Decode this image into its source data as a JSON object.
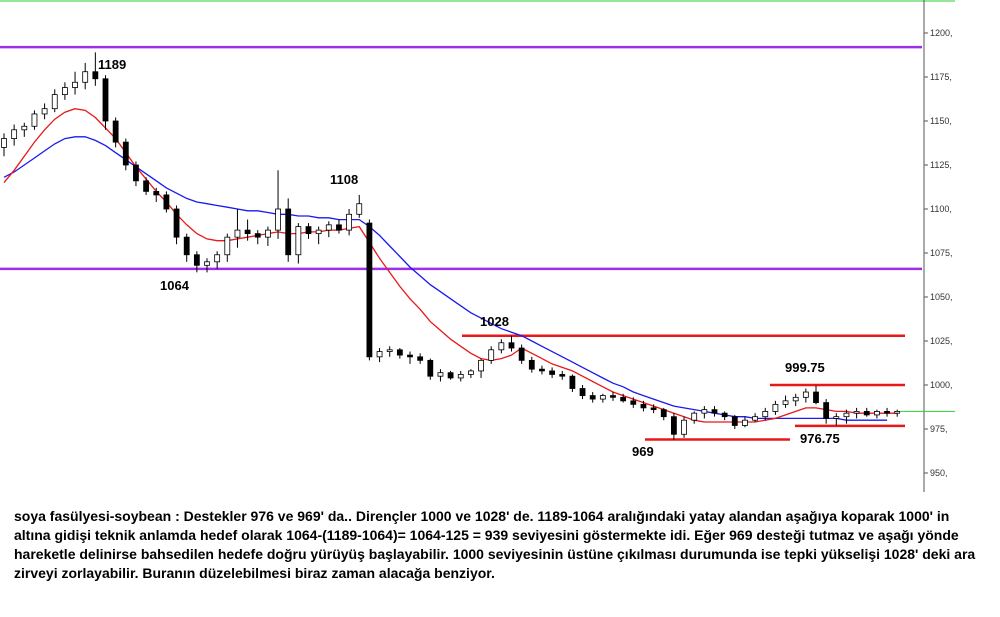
{
  "chart_data": {
    "type": "candlestick",
    "ylim": [
      950,
      1210
    ],
    "y_ticks": [
      950,
      975,
      1000,
      1025,
      1050,
      1075,
      1100,
      1125,
      1150,
      1175,
      1200
    ],
    "tick_suffix": ",",
    "grid": false,
    "candles": [
      {
        "o": 1135,
        "h": 1143,
        "l": 1130,
        "c": 1140
      },
      {
        "o": 1140,
        "h": 1148,
        "l": 1136,
        "c": 1145
      },
      {
        "o": 1145,
        "h": 1149,
        "l": 1141,
        "c": 1147
      },
      {
        "o": 1147,
        "h": 1156,
        "l": 1145,
        "c": 1154
      },
      {
        "o": 1154,
        "h": 1160,
        "l": 1151,
        "c": 1157
      },
      {
        "o": 1157,
        "h": 1168,
        "l": 1155,
        "c": 1165
      },
      {
        "o": 1165,
        "h": 1172,
        "l": 1162,
        "c": 1169
      },
      {
        "o": 1169,
        "h": 1178,
        "l": 1165,
        "c": 1172
      },
      {
        "o": 1172,
        "h": 1183,
        "l": 1168,
        "c": 1178
      },
      {
        "o": 1178,
        "h": 1189,
        "l": 1170,
        "c": 1174
      },
      {
        "o": 1174,
        "h": 1176,
        "l": 1145,
        "c": 1150
      },
      {
        "o": 1150,
        "h": 1152,
        "l": 1135,
        "c": 1138
      },
      {
        "o": 1138,
        "h": 1140,
        "l": 1122,
        "c": 1125
      },
      {
        "o": 1125,
        "h": 1127,
        "l": 1113,
        "c": 1116
      },
      {
        "o": 1116,
        "h": 1118,
        "l": 1108,
        "c": 1110
      },
      {
        "o": 1110,
        "h": 1112,
        "l": 1104,
        "c": 1108
      },
      {
        "o": 1108,
        "h": 1110,
        "l": 1098,
        "c": 1100
      },
      {
        "o": 1100,
        "h": 1102,
        "l": 1080,
        "c": 1084
      },
      {
        "o": 1084,
        "h": 1086,
        "l": 1070,
        "c": 1074
      },
      {
        "o": 1074,
        "h": 1076,
        "l": 1064,
        "c": 1068
      },
      {
        "o": 1068,
        "h": 1072,
        "l": 1064,
        "c": 1070
      },
      {
        "o": 1070,
        "h": 1076,
        "l": 1066,
        "c": 1074
      },
      {
        "o": 1074,
        "h": 1086,
        "l": 1070,
        "c": 1084
      },
      {
        "o": 1084,
        "h": 1100,
        "l": 1078,
        "c": 1088
      },
      {
        "o": 1088,
        "h": 1094,
        "l": 1082,
        "c": 1086
      },
      {
        "o": 1086,
        "h": 1088,
        "l": 1080,
        "c": 1084
      },
      {
        "o": 1084,
        "h": 1090,
        "l": 1079,
        "c": 1088
      },
      {
        "o": 1088,
        "h": 1122,
        "l": 1083,
        "c": 1100
      },
      {
        "o": 1100,
        "h": 1106,
        "l": 1070,
        "c": 1074
      },
      {
        "o": 1074,
        "h": 1092,
        "l": 1069,
        "c": 1090
      },
      {
        "o": 1090,
        "h": 1092,
        "l": 1083,
        "c": 1086
      },
      {
        "o": 1086,
        "h": 1090,
        "l": 1080,
        "c": 1088
      },
      {
        "o": 1088,
        "h": 1093,
        "l": 1084,
        "c": 1091
      },
      {
        "o": 1091,
        "h": 1094,
        "l": 1086,
        "c": 1088
      },
      {
        "o": 1088,
        "h": 1100,
        "l": 1085,
        "c": 1097
      },
      {
        "o": 1097,
        "h": 1108,
        "l": 1095,
        "c": 1103
      },
      {
        "o": 1092,
        "h": 1094,
        "l": 1014,
        "c": 1016
      },
      {
        "o": 1016,
        "h": 1021,
        "l": 1013,
        "c": 1019
      },
      {
        "o": 1019,
        "h": 1022,
        "l": 1016,
        "c": 1020
      },
      {
        "o": 1020,
        "h": 1021,
        "l": 1015,
        "c": 1017
      },
      {
        "o": 1017,
        "h": 1019,
        "l": 1012,
        "c": 1016
      },
      {
        "o": 1016,
        "h": 1018,
        "l": 1012,
        "c": 1014
      },
      {
        "o": 1014,
        "h": 1015,
        "l": 1003,
        "c": 1005
      },
      {
        "o": 1005,
        "h": 1009,
        "l": 1002,
        "c": 1007
      },
      {
        "o": 1007,
        "h": 1008,
        "l": 1003,
        "c": 1004
      },
      {
        "o": 1004,
        "h": 1008,
        "l": 1002,
        "c": 1006
      },
      {
        "o": 1006,
        "h": 1009,
        "l": 1004,
        "c": 1008
      },
      {
        "o": 1008,
        "h": 1015,
        "l": 1004,
        "c": 1014
      },
      {
        "o": 1014,
        "h": 1022,
        "l": 1012,
        "c": 1020
      },
      {
        "o": 1020,
        "h": 1026,
        "l": 1018,
        "c": 1024
      },
      {
        "o": 1024,
        "h": 1028,
        "l": 1019,
        "c": 1021
      },
      {
        "o": 1021,
        "h": 1023,
        "l": 1012,
        "c": 1014
      },
      {
        "o": 1014,
        "h": 1016,
        "l": 1007,
        "c": 1009
      },
      {
        "o": 1009,
        "h": 1011,
        "l": 1006,
        "c": 1008
      },
      {
        "o": 1008,
        "h": 1010,
        "l": 1004,
        "c": 1006
      },
      {
        "o": 1006,
        "h": 1008,
        "l": 1003,
        "c": 1005
      },
      {
        "o": 1005,
        "h": 1006,
        "l": 996,
        "c": 998
      },
      {
        "o": 998,
        "h": 1000,
        "l": 992,
        "c": 994
      },
      {
        "o": 994,
        "h": 996,
        "l": 990,
        "c": 992
      },
      {
        "o": 992,
        "h": 995,
        "l": 990,
        "c": 994
      },
      {
        "o": 994,
        "h": 996,
        "l": 991,
        "c": 993
      },
      {
        "o": 993,
        "h": 995,
        "l": 990,
        "c": 991
      },
      {
        "o": 991,
        "h": 993,
        "l": 987,
        "c": 989
      },
      {
        "o": 989,
        "h": 991,
        "l": 985,
        "c": 987
      },
      {
        "o": 987,
        "h": 989,
        "l": 984,
        "c": 986
      },
      {
        "o": 986,
        "h": 987,
        "l": 980,
        "c": 982
      },
      {
        "o": 982,
        "h": 984,
        "l": 969,
        "c": 972
      },
      {
        "o": 972,
        "h": 982,
        "l": 970,
        "c": 980
      },
      {
        "o": 980,
        "h": 985,
        "l": 978,
        "c": 984
      },
      {
        "o": 984,
        "h": 988,
        "l": 981,
        "c": 986
      },
      {
        "o": 986,
        "h": 988,
        "l": 982,
        "c": 984
      },
      {
        "o": 984,
        "h": 985,
        "l": 980,
        "c": 982
      },
      {
        "o": 982,
        "h": 983,
        "l": 975,
        "c": 977
      },
      {
        "o": 977,
        "h": 982,
        "l": 976,
        "c": 980
      },
      {
        "o": 980,
        "h": 984,
        "l": 979,
        "c": 982
      },
      {
        "o": 982,
        "h": 987,
        "l": 980,
        "c": 985
      },
      {
        "o": 985,
        "h": 991,
        "l": 983,
        "c": 989
      },
      {
        "o": 989,
        "h": 994,
        "l": 987,
        "c": 991
      },
      {
        "o": 991,
        "h": 995,
        "l": 988,
        "c": 993
      },
      {
        "o": 993,
        "h": 998,
        "l": 990,
        "c": 996
      },
      {
        "o": 996,
        "h": 999.75,
        "l": 989,
        "c": 990
      },
      {
        "o": 990,
        "h": 992,
        "l": 978,
        "c": 981
      },
      {
        "o": 981,
        "h": 984,
        "l": 977,
        "c": 982
      },
      {
        "o": 982,
        "h": 986,
        "l": 978,
        "c": 984
      },
      {
        "o": 984,
        "h": 987,
        "l": 981,
        "c": 985
      },
      {
        "o": 985,
        "h": 987,
        "l": 982,
        "c": 983
      },
      {
        "o": 983,
        "h": 986,
        "l": 981,
        "c": 985
      },
      {
        "o": 985,
        "h": 987,
        "l": 982,
        "c": 984
      },
      {
        "o": 984,
        "h": 986,
        "l": 982,
        "c": 985
      }
    ],
    "ma_fast": [
      1115,
      1122,
      1130,
      1138,
      1145,
      1151,
      1155,
      1157,
      1156,
      1152,
      1146,
      1140,
      1132,
      1124,
      1117,
      1110,
      1104,
      1097,
      1091,
      1086,
      1083,
      1082,
      1082,
      1083,
      1084,
      1085,
      1086,
      1087,
      1086,
      1086,
      1087,
      1087,
      1088,
      1088,
      1089,
      1090,
      1081,
      1072,
      1064,
      1056,
      1049,
      1043,
      1036,
      1031,
      1026,
      1022,
      1018,
      1015,
      1014,
      1015,
      1017,
      1021,
      1018,
      1015,
      1012,
      1010,
      1008,
      1005,
      1002,
      999,
      996,
      994,
      992,
      990,
      988,
      986,
      984,
      982,
      980,
      979,
      979,
      979,
      979,
      979,
      979,
      980,
      981,
      983,
      985,
      987,
      987,
      986,
      985,
      985,
      984,
      984,
      984,
      984,
      984
    ],
    "ma_slow": [
      1118,
      1121,
      1125,
      1129,
      1133,
      1137,
      1140,
      1141,
      1141,
      1139,
      1136,
      1132,
      1128,
      1124,
      1120,
      1116,
      1112,
      1109,
      1106,
      1104,
      1103,
      1102,
      1101,
      1100,
      1099,
      1099,
      1098,
      1097,
      1097,
      1096,
      1096,
      1095,
      1095,
      1094,
      1094,
      1094,
      1090,
      1085,
      1079,
      1073,
      1067,
      1062,
      1057,
      1053,
      1049,
      1045,
      1041,
      1038,
      1035,
      1032,
      1030,
      1028,
      1025,
      1022,
      1019,
      1016,
      1013,
      1010,
      1007,
      1004,
      1001,
      999,
      996,
      994,
      992,
      990,
      988,
      987,
      986,
      985,
      984,
      983,
      982,
      982,
      981,
      981,
      981,
      981,
      981,
      981,
      981,
      981,
      981,
      980,
      980,
      980,
      980,
      980
    ],
    "horizontal_levels": [
      {
        "value": 1192,
        "color": "#9b30e8",
        "kind": "resistance-band"
      },
      {
        "value": 1066,
        "color": "#9b30e8",
        "kind": "support-band"
      },
      {
        "value": 1028,
        "color": "#e81818",
        "kind": "resistance"
      },
      {
        "value": 1000,
        "color": "#e81818",
        "kind": "resistance"
      },
      {
        "value": 976.75,
        "color": "#e81818",
        "kind": "support"
      },
      {
        "value": 969,
        "color": "#e81818",
        "kind": "support"
      }
    ],
    "annotations": [
      {
        "text": "1189",
        "value": 1189
      },
      {
        "text": "1108",
        "value": 1108
      },
      {
        "text": "1064",
        "value": 1064
      },
      {
        "text": "1028",
        "value": 1028
      },
      {
        "text": "999.75",
        "value": 999.75
      },
      {
        "text": "969",
        "value": 969
      },
      {
        "text": "976.75",
        "value": 976.75
      }
    ],
    "colors": {
      "ma_fast": "#e81818",
      "ma_slow": "#1a1aee",
      "candle": "#000000",
      "axis": "#555555",
      "current_price_line": "#33cc33"
    }
  },
  "commentary": "soya fasülyesi-soybean : Destekler 976 ve 969' da.. Dirençler 1000 ve 1028' de. 1189-1064 aralığındaki yatay alandan aşağıya koparak 1000' in altına gidişi teknik anlamda hedef olarak 1064-(1189-1064)= 1064-125 = 939 seviyesini göstermekte idi. Eğer 969 desteği tutmaz ve aşağı yönde hareketle delinirse bahsedilen hedefe doğru yürüyüş başlayabilir. 1000 seviyesinin üstüne çıkılması durumunda ise tepki yükselişi 1028' deki ara zirveyi zorlayabilir. Buranın düzelebilmesi biraz zaman alacağa benziyor."
}
